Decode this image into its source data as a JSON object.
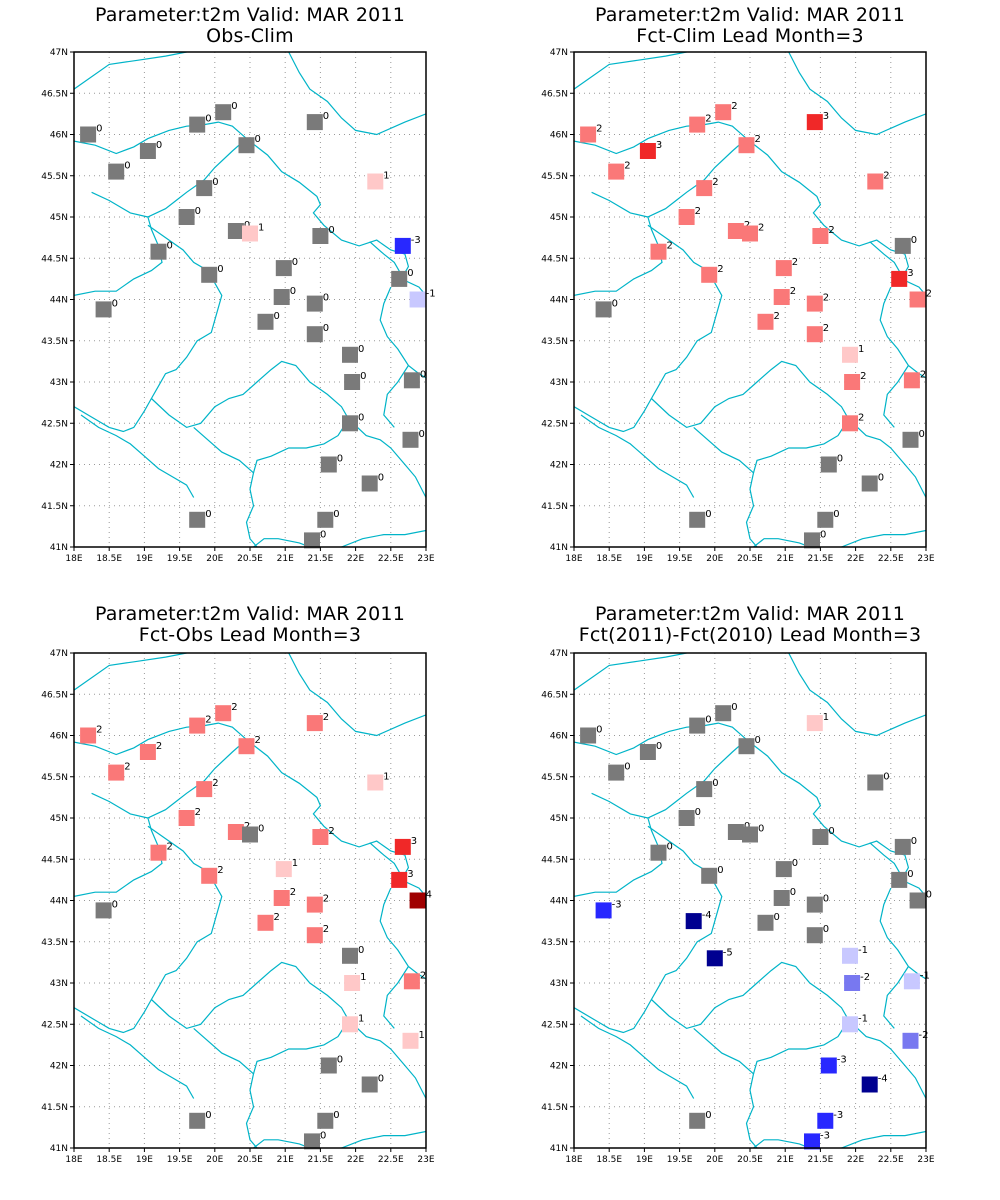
{
  "legend_colors": {
    "-5": "#000090",
    "-4": "#000090",
    "-3": "#2828ff",
    "-2": "#7878f0",
    "-1": "#c8c8ff",
    "0": "#7a7a7a",
    "1": "#ffc8c8",
    "2": "#fa7878",
    "3": "#f02828",
    "4": "#a00000"
  },
  "border_color": "#00b4c8",
  "grid": "dotted",
  "x_ticks": [
    "18E",
    "18.5E",
    "19E",
    "19.5E",
    "20E",
    "20.5E",
    "21E",
    "21.5E",
    "22E",
    "22.5E",
    "23E"
  ],
  "y_ticks": [
    "47N",
    "46.5N",
    "46N",
    "45.5N",
    "45N",
    "44.5N",
    "44N",
    "43.5N",
    "43N",
    "42.5N",
    "42N",
    "41.5N",
    "41N"
  ],
  "lon_range": [
    18,
    23
  ],
  "lat_range": [
    41,
    47
  ],
  "panels": [
    {
      "title1": "Parameter:t2m Valid: MAR 2011",
      "title2": "Obs-Clim",
      "stations": [
        {
          "lon": 18.2,
          "lat": 46.0,
          "v": 0
        },
        {
          "lon": 18.6,
          "lat": 45.55,
          "v": 0
        },
        {
          "lon": 19.05,
          "lat": 45.8,
          "v": 0
        },
        {
          "lon": 19.75,
          "lat": 46.12,
          "v": 0
        },
        {
          "lon": 20.12,
          "lat": 46.27,
          "v": 0
        },
        {
          "lon": 20.45,
          "lat": 45.87,
          "v": 0
        },
        {
          "lon": 21.42,
          "lat": 46.15,
          "v": 0
        },
        {
          "lon": 22.28,
          "lat": 45.43,
          "v": 1
        },
        {
          "lon": 19.85,
          "lat": 45.35,
          "v": 0
        },
        {
          "lon": 19.6,
          "lat": 45.0,
          "v": 0
        },
        {
          "lon": 20.3,
          "lat": 44.83,
          "v": 0
        },
        {
          "lon": 20.5,
          "lat": 44.8,
          "v": 1
        },
        {
          "lon": 21.5,
          "lat": 44.77,
          "v": 0
        },
        {
          "lon": 22.67,
          "lat": 44.65,
          "v": -3
        },
        {
          "lon": 19.2,
          "lat": 44.58,
          "v": 0
        },
        {
          "lon": 19.92,
          "lat": 44.3,
          "v": 0
        },
        {
          "lon": 20.98,
          "lat": 44.38,
          "v": 0
        },
        {
          "lon": 22.62,
          "lat": 44.25,
          "v": 0
        },
        {
          "lon": 22.88,
          "lat": 44.0,
          "v": -1
        },
        {
          "lon": 20.95,
          "lat": 44.03,
          "v": 0
        },
        {
          "lon": 21.42,
          "lat": 43.95,
          "v": 0
        },
        {
          "lon": 18.42,
          "lat": 43.88,
          "v": 0
        },
        {
          "lon": 20.72,
          "lat": 43.73,
          "v": 0
        },
        {
          "lon": 21.42,
          "lat": 43.58,
          "v": 0
        },
        {
          "lon": 21.92,
          "lat": 43.33,
          "v": 0
        },
        {
          "lon": 21.95,
          "lat": 43.0,
          "v": 0
        },
        {
          "lon": 22.8,
          "lat": 43.02,
          "v": 0
        },
        {
          "lon": 21.92,
          "lat": 42.5,
          "v": 0
        },
        {
          "lon": 22.78,
          "lat": 42.3,
          "v": 0
        },
        {
          "lon": 21.62,
          "lat": 42.0,
          "v": 0
        },
        {
          "lon": 22.2,
          "lat": 41.77,
          "v": 0
        },
        {
          "lon": 19.75,
          "lat": 41.33,
          "v": 0
        },
        {
          "lon": 21.57,
          "lat": 41.33,
          "v": 0
        },
        {
          "lon": 21.38,
          "lat": 41.08,
          "v": 0
        }
      ]
    },
    {
      "title1": "Parameter:t2m Valid: MAR 2011",
      "title2": "Fct-Clim Lead Month=3",
      "stations": [
        {
          "lon": 18.2,
          "lat": 46.0,
          "v": 2
        },
        {
          "lon": 18.6,
          "lat": 45.55,
          "v": 2
        },
        {
          "lon": 19.05,
          "lat": 45.8,
          "v": 3
        },
        {
          "lon": 19.75,
          "lat": 46.12,
          "v": 2
        },
        {
          "lon": 20.12,
          "lat": 46.27,
          "v": 2
        },
        {
          "lon": 20.45,
          "lat": 45.87,
          "v": 2
        },
        {
          "lon": 21.42,
          "lat": 46.15,
          "v": 3
        },
        {
          "lon": 22.28,
          "lat": 45.43,
          "v": 2
        },
        {
          "lon": 19.85,
          "lat": 45.35,
          "v": 2
        },
        {
          "lon": 19.6,
          "lat": 45.0,
          "v": 2
        },
        {
          "lon": 20.3,
          "lat": 44.83,
          "v": 2
        },
        {
          "lon": 20.5,
          "lat": 44.8,
          "v": 2
        },
        {
          "lon": 21.5,
          "lat": 44.77,
          "v": 2
        },
        {
          "lon": 22.67,
          "lat": 44.65,
          "v": 0
        },
        {
          "lon": 19.2,
          "lat": 44.58,
          "v": 2
        },
        {
          "lon": 19.92,
          "lat": 44.3,
          "v": 2
        },
        {
          "lon": 20.98,
          "lat": 44.38,
          "v": 2
        },
        {
          "lon": 22.62,
          "lat": 44.25,
          "v": 3
        },
        {
          "lon": 22.88,
          "lat": 44.0,
          "v": 2
        },
        {
          "lon": 20.95,
          "lat": 44.03,
          "v": 2
        },
        {
          "lon": 21.42,
          "lat": 43.95,
          "v": 2
        },
        {
          "lon": 18.42,
          "lat": 43.88,
          "v": 0
        },
        {
          "lon": 20.72,
          "lat": 43.73,
          "v": 2
        },
        {
          "lon": 21.42,
          "lat": 43.58,
          "v": 2
        },
        {
          "lon": 21.92,
          "lat": 43.33,
          "v": 1
        },
        {
          "lon": 21.95,
          "lat": 43.0,
          "v": 2
        },
        {
          "lon": 22.8,
          "lat": 43.02,
          "v": 2
        },
        {
          "lon": 21.92,
          "lat": 42.5,
          "v": 2
        },
        {
          "lon": 22.78,
          "lat": 42.3,
          "v": 0
        },
        {
          "lon": 21.62,
          "lat": 42.0,
          "v": 0
        },
        {
          "lon": 22.2,
          "lat": 41.77,
          "v": 0
        },
        {
          "lon": 19.75,
          "lat": 41.33,
          "v": 0
        },
        {
          "lon": 21.57,
          "lat": 41.33,
          "v": 0
        },
        {
          "lon": 21.38,
          "lat": 41.08,
          "v": 0
        }
      ]
    },
    {
      "title1": "Parameter:t2m Valid: MAR 2011",
      "title2": "Fct-Obs Lead Month=3",
      "stations": [
        {
          "lon": 18.2,
          "lat": 46.0,
          "v": 2
        },
        {
          "lon": 18.6,
          "lat": 45.55,
          "v": 2
        },
        {
          "lon": 19.05,
          "lat": 45.8,
          "v": 2
        },
        {
          "lon": 19.75,
          "lat": 46.12,
          "v": 2
        },
        {
          "lon": 20.12,
          "lat": 46.27,
          "v": 2
        },
        {
          "lon": 20.45,
          "lat": 45.87,
          "v": 2
        },
        {
          "lon": 21.42,
          "lat": 46.15,
          "v": 2
        },
        {
          "lon": 22.28,
          "lat": 45.43,
          "v": 1
        },
        {
          "lon": 19.85,
          "lat": 45.35,
          "v": 2
        },
        {
          "lon": 19.6,
          "lat": 45.0,
          "v": 2
        },
        {
          "lon": 20.3,
          "lat": 44.83,
          "v": 2
        },
        {
          "lon": 20.5,
          "lat": 44.8,
          "v": 0
        },
        {
          "lon": 21.5,
          "lat": 44.77,
          "v": 2
        },
        {
          "lon": 22.67,
          "lat": 44.65,
          "v": 3
        },
        {
          "lon": 19.2,
          "lat": 44.58,
          "v": 2
        },
        {
          "lon": 19.92,
          "lat": 44.3,
          "v": 2
        },
        {
          "lon": 20.98,
          "lat": 44.38,
          "v": 1
        },
        {
          "lon": 22.62,
          "lat": 44.25,
          "v": 3
        },
        {
          "lon": 22.88,
          "lat": 44.0,
          "v": 4
        },
        {
          "lon": 20.95,
          "lat": 44.03,
          "v": 2
        },
        {
          "lon": 21.42,
          "lat": 43.95,
          "v": 2
        },
        {
          "lon": 18.42,
          "lat": 43.88,
          "v": 0
        },
        {
          "lon": 20.72,
          "lat": 43.73,
          "v": 2
        },
        {
          "lon": 21.42,
          "lat": 43.58,
          "v": 2
        },
        {
          "lon": 21.92,
          "lat": 43.33,
          "v": 0
        },
        {
          "lon": 21.95,
          "lat": 43.0,
          "v": 1
        },
        {
          "lon": 22.8,
          "lat": 43.02,
          "v": 2
        },
        {
          "lon": 21.92,
          "lat": 42.5,
          "v": 1
        },
        {
          "lon": 22.78,
          "lat": 42.3,
          "v": 1
        },
        {
          "lon": 21.62,
          "lat": 42.0,
          "v": 0
        },
        {
          "lon": 22.2,
          "lat": 41.77,
          "v": 0
        },
        {
          "lon": 19.75,
          "lat": 41.33,
          "v": 0
        },
        {
          "lon": 21.57,
          "lat": 41.33,
          "v": 0
        },
        {
          "lon": 21.38,
          "lat": 41.08,
          "v": 0
        }
      ]
    },
    {
      "title1": "Parameter:t2m Valid: MAR 2011",
      "title2": "Fct(2011)-Fct(2010) Lead Month=3",
      "stations": [
        {
          "lon": 18.2,
          "lat": 46.0,
          "v": 0
        },
        {
          "lon": 18.6,
          "lat": 45.55,
          "v": 0
        },
        {
          "lon": 19.05,
          "lat": 45.8,
          "v": 0
        },
        {
          "lon": 19.75,
          "lat": 46.12,
          "v": 0
        },
        {
          "lon": 20.12,
          "lat": 46.27,
          "v": 0
        },
        {
          "lon": 20.45,
          "lat": 45.87,
          "v": 0
        },
        {
          "lon": 21.42,
          "lat": 46.15,
          "v": 1
        },
        {
          "lon": 22.28,
          "lat": 45.43,
          "v": 0
        },
        {
          "lon": 19.85,
          "lat": 45.35,
          "v": 0
        },
        {
          "lon": 19.6,
          "lat": 45.0,
          "v": 0
        },
        {
          "lon": 20.3,
          "lat": 44.83,
          "v": 0
        },
        {
          "lon": 20.5,
          "lat": 44.8,
          "v": 0
        },
        {
          "lon": 21.5,
          "lat": 44.77,
          "v": 0
        },
        {
          "lon": 22.67,
          "lat": 44.65,
          "v": 0
        },
        {
          "lon": 19.2,
          "lat": 44.58,
          "v": 0
        },
        {
          "lon": 19.92,
          "lat": 44.3,
          "v": 0
        },
        {
          "lon": 20.98,
          "lat": 44.38,
          "v": 0
        },
        {
          "lon": 22.62,
          "lat": 44.25,
          "v": 0
        },
        {
          "lon": 22.88,
          "lat": 44.0,
          "v": 0
        },
        {
          "lon": 20.95,
          "lat": 44.03,
          "v": 0
        },
        {
          "lon": 21.42,
          "lat": 43.95,
          "v": 0
        },
        {
          "lon": 18.42,
          "lat": 43.88,
          "v": -3
        },
        {
          "lon": 20.72,
          "lat": 43.73,
          "v": 0
        },
        {
          "lon": 21.42,
          "lat": 43.58,
          "v": 0
        },
        {
          "lon": 19.7,
          "lat": 43.75,
          "v": -4
        },
        {
          "lon": 20.0,
          "lat": 43.3,
          "v": -5
        },
        {
          "lon": 21.92,
          "lat": 43.33,
          "v": -1
        },
        {
          "lon": 21.95,
          "lat": 43.0,
          "v": -2
        },
        {
          "lon": 22.8,
          "lat": 43.02,
          "v": -1
        },
        {
          "lon": 21.92,
          "lat": 42.5,
          "v": -1
        },
        {
          "lon": 22.78,
          "lat": 42.3,
          "v": -2
        },
        {
          "lon": 21.62,
          "lat": 42.0,
          "v": -3
        },
        {
          "lon": 22.2,
          "lat": 41.77,
          "v": -4
        },
        {
          "lon": 19.75,
          "lat": 41.33,
          "v": 0
        },
        {
          "lon": 21.57,
          "lat": 41.33,
          "v": -3
        },
        {
          "lon": 21.38,
          "lat": 41.08,
          "v": -3
        }
      ]
    }
  ]
}
